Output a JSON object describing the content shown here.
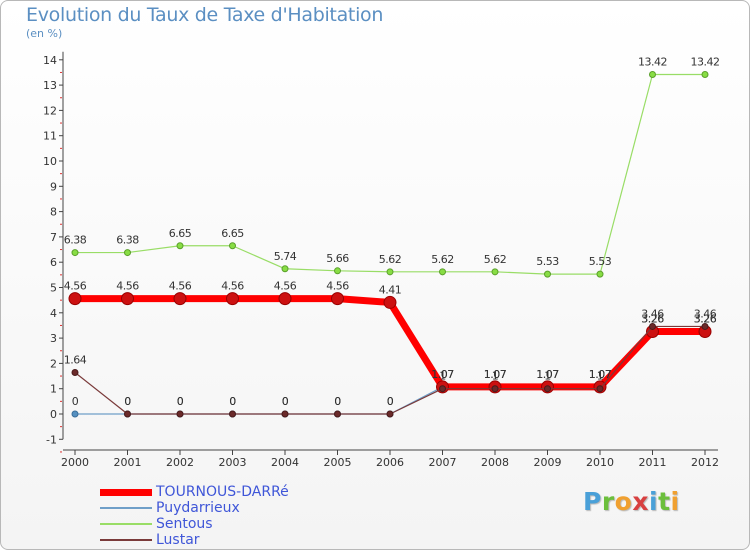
{
  "chart_data": {
    "type": "line",
    "title": "Evolution du Taux de Taxe d'Habitation",
    "ylabel": "(en %)",
    "xlabel": "",
    "categories": [
      "2000",
      "2001",
      "2002",
      "2003",
      "2004",
      "2005",
      "2006",
      "2007",
      "2008",
      "2009",
      "2010",
      "2011",
      "2012"
    ],
    "ylim": [
      -1,
      14
    ],
    "yticks": [
      "-1",
      "0",
      "1",
      "2",
      "3",
      "4",
      "5",
      "6",
      "7",
      "8",
      "9",
      "10",
      "11",
      "12",
      "13",
      "14"
    ],
    "grid": false,
    "legend_position": "bottom-left",
    "series": [
      {
        "name": "TOURNOUS-DARRé",
        "color": "#ff0000",
        "values": [
          4.56,
          4.56,
          4.56,
          4.56,
          4.56,
          4.56,
          4.41,
          1.07,
          1.07,
          1.07,
          1.07,
          3.26,
          3.26
        ],
        "labels": [
          "4.56",
          "4.56",
          "4.56",
          "4.56",
          "4.56",
          "4.56",
          "4.41",
          "1.07",
          "1.07",
          "1.07",
          "1.07",
          "3.26",
          "3.26"
        ]
      },
      {
        "name": "Puydarrieux",
        "color": "#6f9fc8",
        "values": [
          0,
          0,
          0,
          0,
          0,
          0,
          0,
          1.07,
          1.07,
          1.07,
          1.07,
          3.26,
          3.26
        ],
        "labels": [
          "0",
          "0",
          "0",
          "0",
          "0",
          "0",
          "0",
          "1.07",
          "1.07",
          "1.07",
          "1.07",
          "3.26",
          "3.26"
        ]
      },
      {
        "name": "Sentous",
        "color": "#99dd66",
        "values": [
          6.38,
          6.38,
          6.65,
          6.65,
          5.74,
          5.66,
          5.62,
          5.62,
          5.62,
          5.53,
          5.53,
          13.42,
          13.42
        ],
        "labels": [
          "6.38",
          "6.38",
          "6.65",
          "6.65",
          "5.74",
          "5.66",
          "5.62",
          "5.62",
          "5.62",
          "5.53",
          "5.53",
          "13.42",
          "13.42"
        ]
      },
      {
        "name": "Lustar",
        "color": "#7a3a3a",
        "values": [
          1.64,
          0,
          0,
          0,
          0,
          0,
          0,
          1,
          1,
          1,
          1,
          3.46,
          3.46
        ],
        "labels": [
          "1.64",
          "0",
          "0",
          "0",
          "0",
          "0",
          "0",
          "1",
          "1",
          "1",
          "1",
          "3.46",
          "3.46"
        ]
      }
    ]
  },
  "brand": {
    "text": "Proxiti",
    "colors": [
      "#4aa0d8",
      "#6cbf3c",
      "#f0a030",
      "#d84040",
      "#4aa0d8",
      "#6cbf3c",
      "#f0a030"
    ]
  }
}
